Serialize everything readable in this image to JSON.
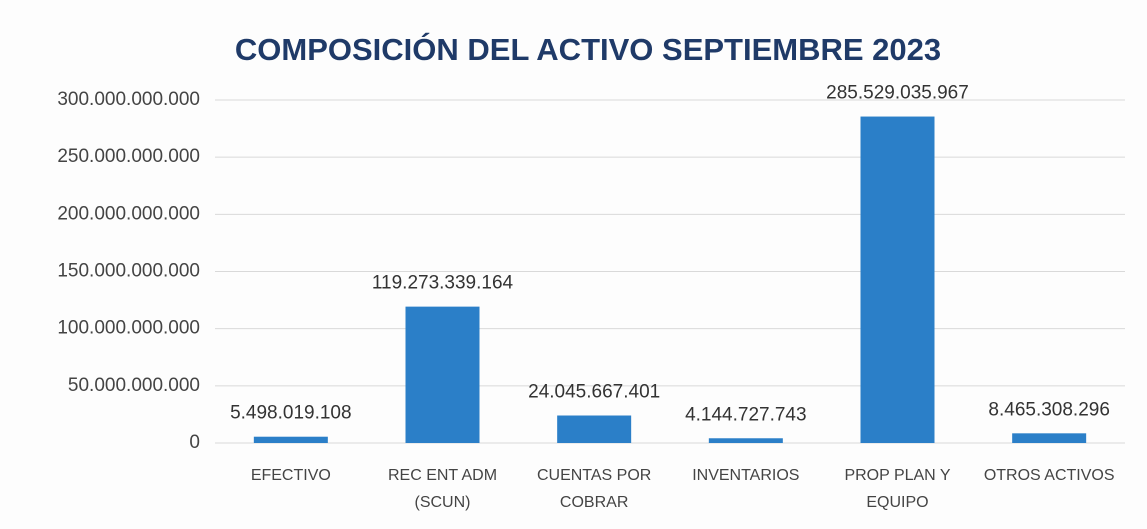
{
  "chart_data": {
    "type": "bar",
    "title": "COMPOSICIÓN DEL ACTIVO SEPTIEMBRE 2023",
    "categories": [
      "EFECTIVO",
      "REC ENT ADM (SCUN)",
      "CUENTAS POR COBRAR",
      "INVENTARIOS",
      "PROP PLAN Y EQUIPO",
      "OTROS ACTIVOS"
    ],
    "values": [
      5498019108,
      119273339164,
      24045667401,
      4144727743,
      285529035967,
      8465308296
    ],
    "value_labels": [
      "5.498.019.108",
      "119.273.339.164",
      "24.045.667.401",
      "4.144.727.743",
      "285.529.035.967",
      "8.465.308.296"
    ],
    "color": "#2b7fc8",
    "ylim": [
      0,
      300000000000
    ],
    "yticks": [
      0,
      {
        "value": 50000000000,
        "label": "50.000.000.000"
      },
      {
        "value": 100000000000,
        "label": "100.000.000.000"
      },
      {
        "value": 150000000000,
        "label": "150.000.000.000"
      },
      {
        "value": 200000000000,
        "label": "200.000.000.000"
      },
      {
        "value": 250000000000,
        "label": "250.000.000.000"
      },
      {
        "value": 300000000000,
        "label": "300.000.000.000"
      }
    ],
    "grid": true
  }
}
